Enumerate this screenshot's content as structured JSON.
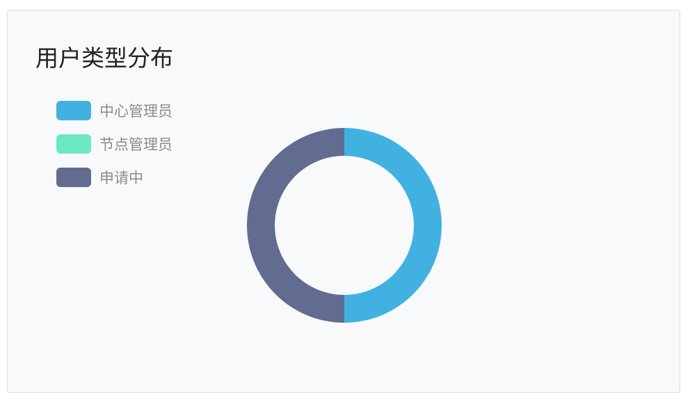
{
  "chart_data": {
    "type": "pie",
    "title": "用户类型分布",
    "donut": true,
    "legend_position": "top-left",
    "series": [
      {
        "name": "中心管理员",
        "value": 1,
        "color": "#41b1e2"
      },
      {
        "name": "节点管理员",
        "value": 0,
        "color": "#6de8c4"
      },
      {
        "name": "申请中",
        "value": 1,
        "color": "#626c90"
      }
    ]
  }
}
